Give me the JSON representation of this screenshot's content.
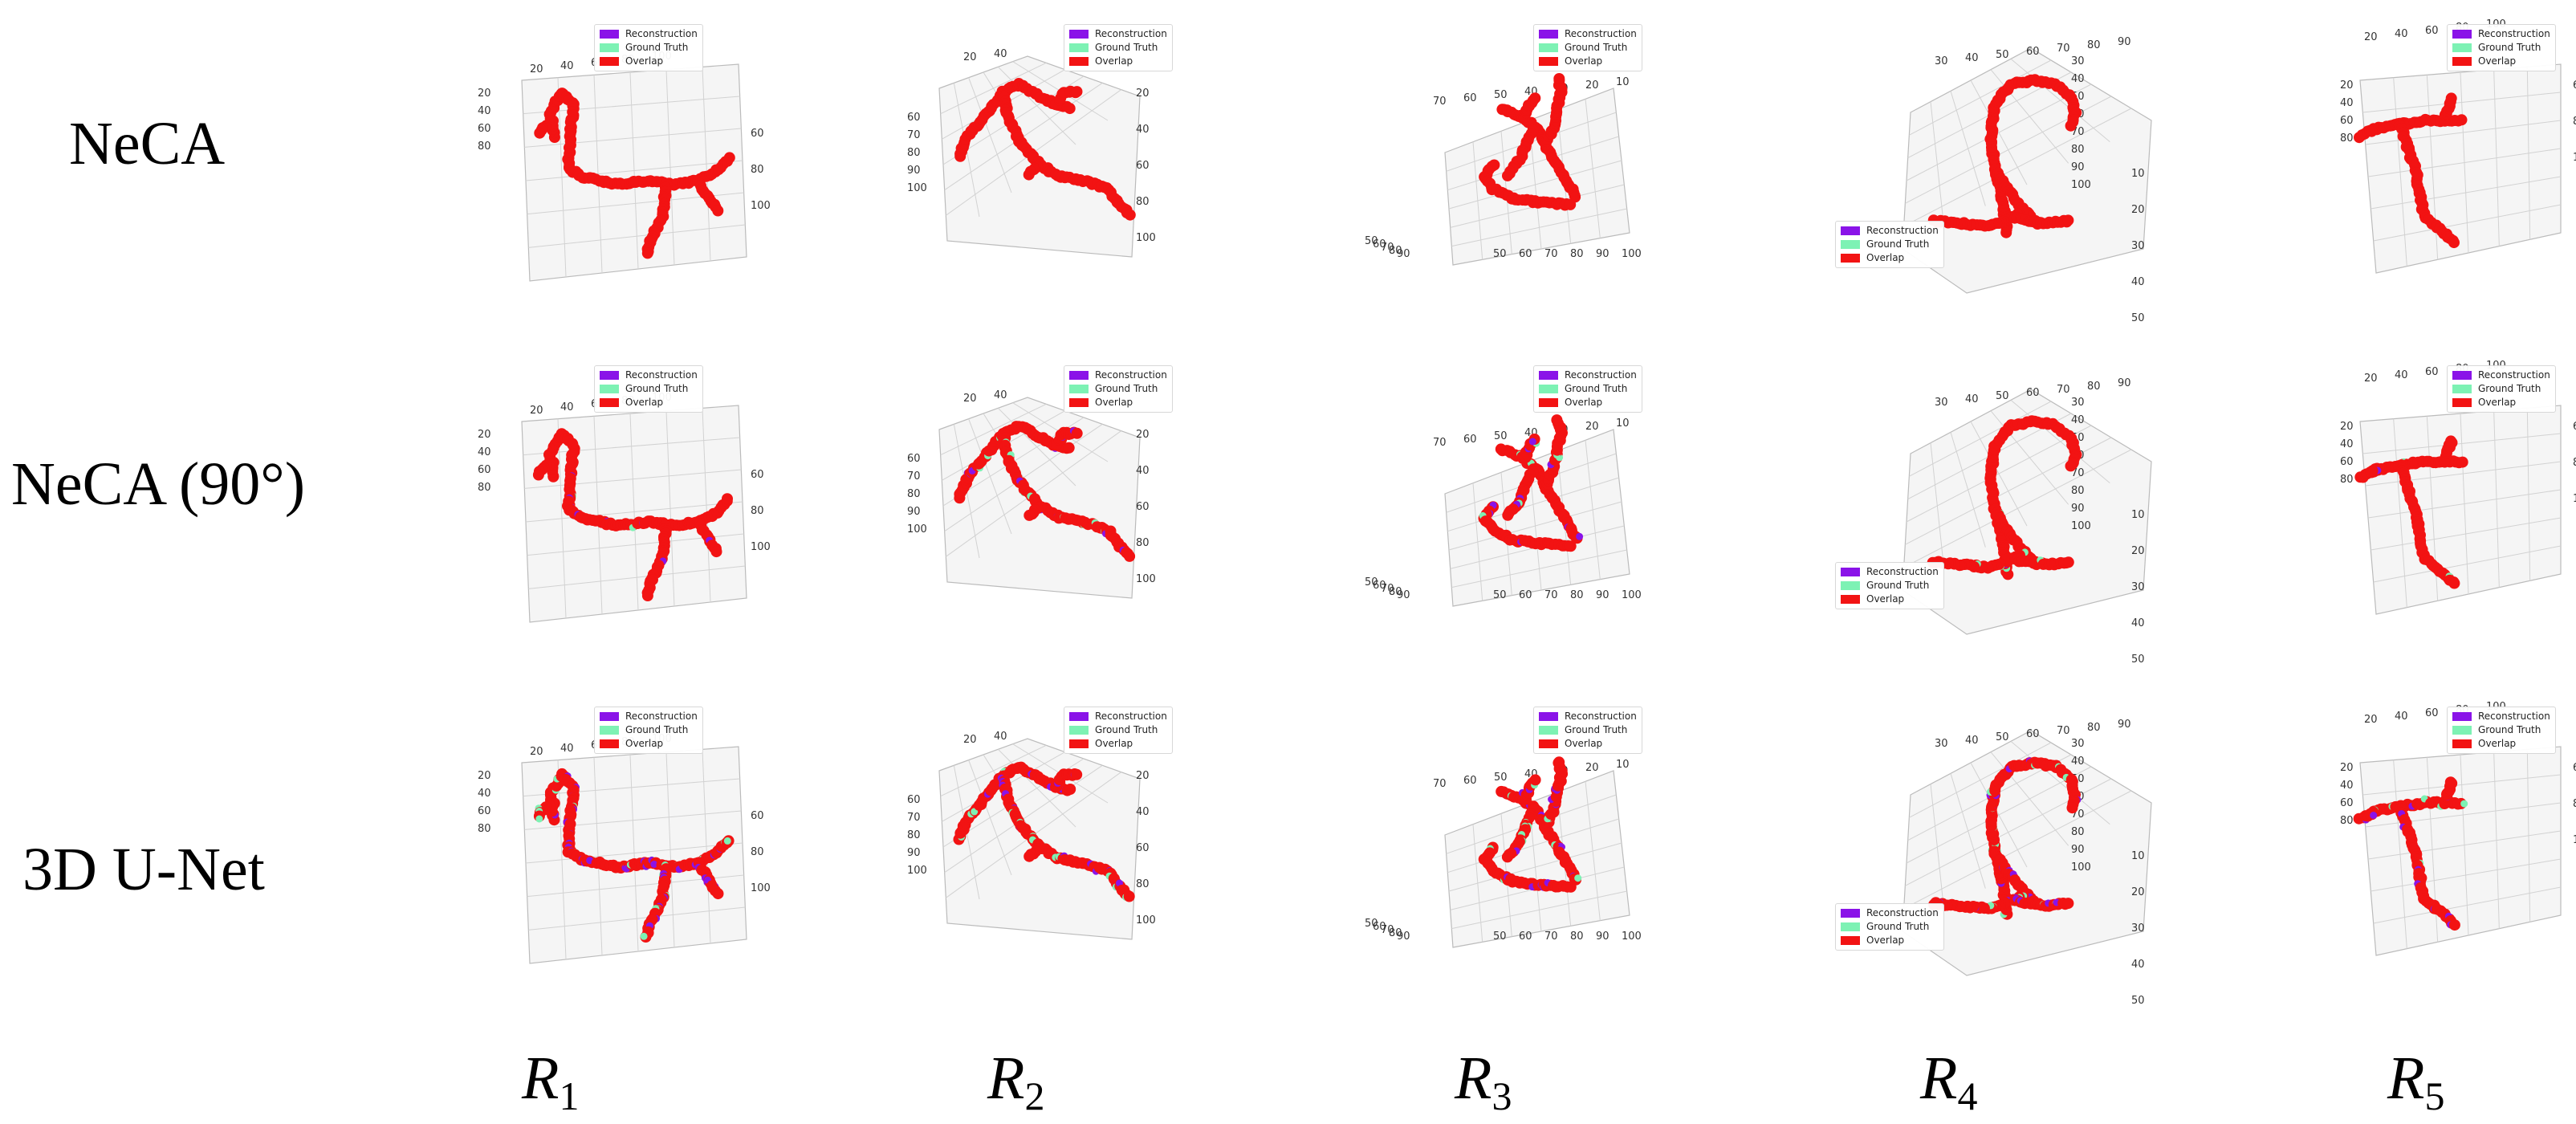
{
  "rows": [
    {
      "label": "NeCA"
    },
    {
      "label": "NeCA (90°)"
    },
    {
      "label": "3D U-Net"
    }
  ],
  "columns": [
    {
      "letter": "R",
      "sub": "1"
    },
    {
      "letter": "R",
      "sub": "2"
    },
    {
      "letter": "R",
      "sub": "3"
    },
    {
      "letter": "R",
      "sub": "4"
    },
    {
      "letter": "R",
      "sub": "5"
    }
  ],
  "legend": [
    {
      "label": "Reconstruction",
      "color": "#8a13e8"
    },
    {
      "label": "Ground Truth",
      "color": "#7df2b4"
    },
    {
      "label": "Overlap",
      "color": "#f21313"
    }
  ],
  "colors": {
    "overlap": "#f21313",
    "reconstruction": "#8a13e8",
    "ground_truth": "#7df2b4",
    "pane": "#ececec"
  },
  "chart_data": {
    "type": "scatter",
    "projection": "3d",
    "description_of_marks": "Each panel is a 3D voxel scatter of a vessel tree: red = overlap, purple = reconstruction only, green = ground truth only.",
    "view_ticks": {
      "R1": {
        "a": [
          "20",
          "40",
          "60",
          "80",
          "100"
        ],
        "b": [
          "20",
          "40",
          "60",
          "80"
        ],
        "c": [
          "60",
          "80",
          "100"
        ]
      },
      "R2": {
        "a": [
          "20",
          "40"
        ],
        "b": [
          "60",
          "70",
          "80",
          "90",
          "100"
        ],
        "c": [
          "20",
          "40",
          "60",
          "80",
          "100"
        ]
      },
      "R3": {
        "a": [
          "70",
          "60",
          "50",
          "40",
          "30",
          "20",
          "10"
        ],
        "b": [
          "50",
          "60",
          "70",
          "80",
          "90",
          "100"
        ],
        "c": [
          "90",
          "80",
          "70",
          "60",
          "50"
        ]
      },
      "R4": {
        "a": [
          "30",
          "40",
          "50",
          "60",
          "70",
          "80",
          "90"
        ],
        "b": [
          "30",
          "40",
          "50",
          "60",
          "70",
          "80",
          "90",
          "100"
        ],
        "c": [
          "10",
          "20",
          "30",
          "40",
          "50",
          "60",
          "70"
        ]
      },
      "R5": {
        "a": [
          "20",
          "40",
          "60",
          "80",
          "100"
        ],
        "b": [
          "20",
          "40",
          "60",
          "80"
        ],
        "c": [
          "60",
          "80",
          "100"
        ]
      }
    },
    "panels": [
      {
        "row": 0,
        "col": 0,
        "view": "R1",
        "mismatch": 0.0
      },
      {
        "row": 0,
        "col": 1,
        "view": "R2",
        "mismatch": 0.0
      },
      {
        "row": 0,
        "col": 2,
        "view": "R3",
        "mismatch": 0.0
      },
      {
        "row": 0,
        "col": 3,
        "view": "R4",
        "mismatch": 0.0
      },
      {
        "row": 0,
        "col": 4,
        "view": "R5",
        "mismatch": 0.0
      },
      {
        "row": 1,
        "col": 0,
        "view": "R1",
        "mismatch": 0.05
      },
      {
        "row": 1,
        "col": 1,
        "view": "R2",
        "mismatch": 0.22
      },
      {
        "row": 1,
        "col": 2,
        "view": "R3",
        "mismatch": 0.18
      },
      {
        "row": 1,
        "col": 3,
        "view": "R4",
        "mismatch": 0.06
      },
      {
        "row": 1,
        "col": 4,
        "view": "R5",
        "mismatch": 0.08
      },
      {
        "row": 2,
        "col": 0,
        "view": "R1",
        "mismatch": 0.35
      },
      {
        "row": 2,
        "col": 1,
        "view": "R2",
        "mismatch": 0.35
      },
      {
        "row": 2,
        "col": 2,
        "view": "R3",
        "mismatch": 0.35
      },
      {
        "row": 2,
        "col": 3,
        "view": "R4",
        "mismatch": 0.3
      },
      {
        "row": 2,
        "col": 4,
        "view": "R5",
        "mismatch": 0.3
      }
    ]
  }
}
